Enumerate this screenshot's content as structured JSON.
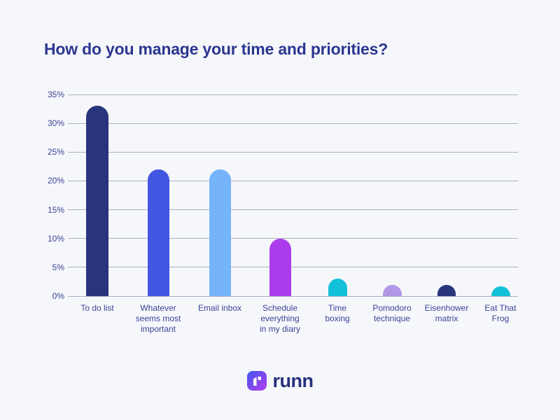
{
  "page": {
    "background": "#f6f7fa",
    "gridline_color": "#abafc7",
    "axis_text_color": "#3a4496"
  },
  "title": "How do you manage your time and priorities?",
  "title_color": "#2b3690",
  "chart_data": {
    "type": "bar",
    "title": "How do you manage your time and priorities?",
    "categories": [
      "To do list",
      "Whatever seems most important",
      "Email inbox",
      "Schedule everything in my diary",
      "Time boxing",
      "Pomodoro technique",
      "Eisenhower matrix",
      "Eat That Frog"
    ],
    "category_lines": [
      [
        "To do list"
      ],
      [
        "Whatever",
        "seems most",
        "important"
      ],
      [
        "Email inbox"
      ],
      [
        "Schedule",
        "everything",
        "in my diary"
      ],
      [
        "Time",
        "boxing"
      ],
      [
        "Pomodoro",
        "technique"
      ],
      [
        "Eisenhower",
        "matrix"
      ],
      [
        "Eat That",
        "Frog"
      ]
    ],
    "values": [
      33,
      22,
      22,
      10,
      3,
      2,
      2,
      1
    ],
    "unit": "%",
    "bar_colors": [
      "#28357c",
      "#4257e2",
      "#75b4fb",
      "#ab3cec",
      "#12c1d7",
      "#b198e6",
      "#28357c",
      "#12c1d7"
    ],
    "y_ticks": [
      "0%",
      "5%",
      "10%",
      "15%",
      "20%",
      "25%",
      "30%",
      "35%"
    ],
    "ylim": [
      0,
      35
    ],
    "xlabel": "",
    "ylabel": "",
    "grid": true,
    "legend": false
  },
  "logo": {
    "wordmark": "runn",
    "wordmark_color": "#27317e",
    "icon": "runn-logo-icon",
    "icon_gradient": [
      "#3f55ec",
      "#b53ff0"
    ]
  }
}
